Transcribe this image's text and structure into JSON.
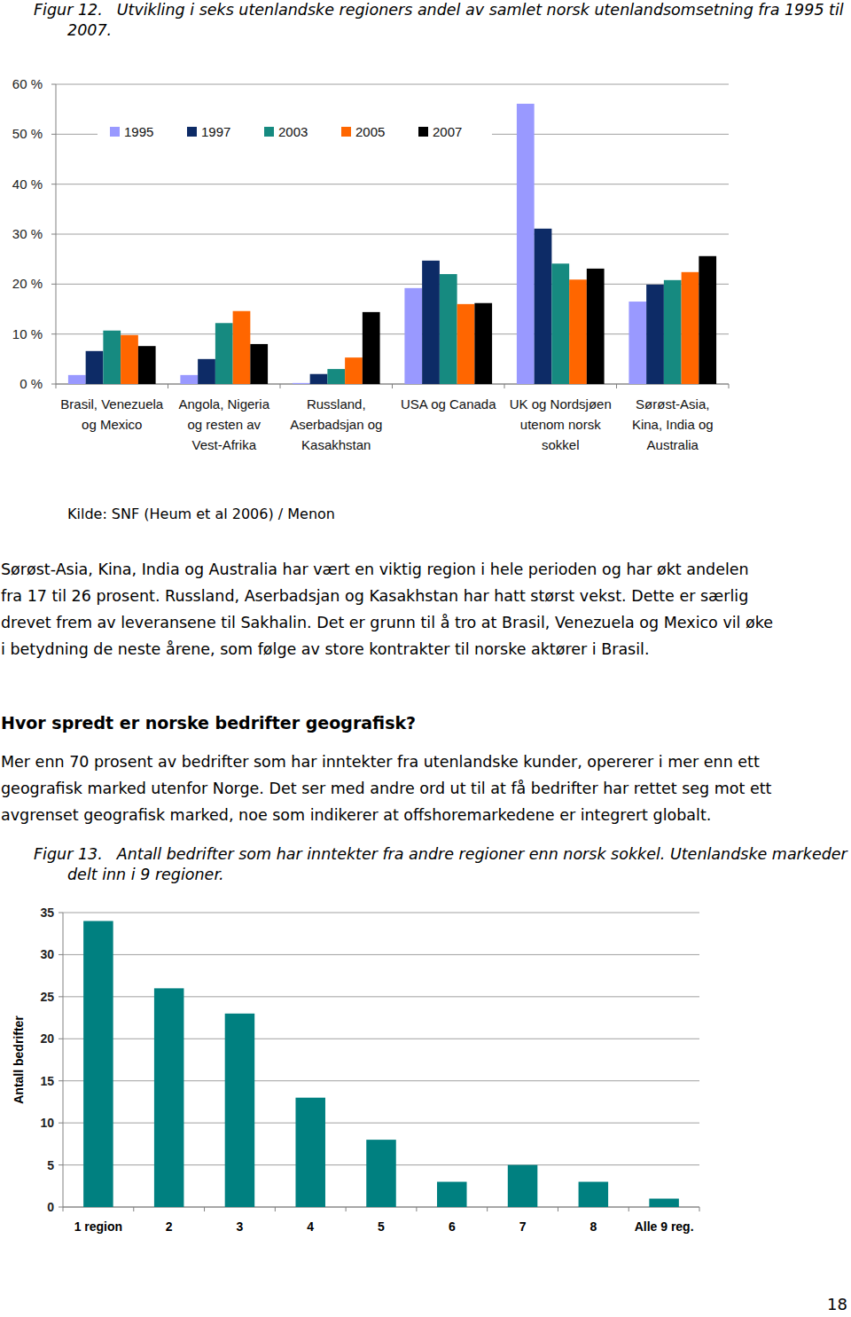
{
  "chart_data": [
    {
      "type": "bar",
      "title": "Figur 12.",
      "subtitle": "Utvikling i seks utenlandske regioners andel av samlet norsk utenlandsomsetning fra 1995 til 2007.",
      "categories": [
        "Brasil, Venezuela og Mexico",
        "Angola, Nigeria og resten av Vest-Afrika",
        "Russland, Aserbadsjan og Kasakhstan",
        "USA og Canada",
        "UK og Nordsjøen utenom norsk sokkel",
        "Sørøst-Asia, Kina, India og Australia"
      ],
      "series": [
        {
          "name": "1995",
          "color": "#9999ff",
          "values": [
            1.8,
            1.8,
            0.2,
            19.2,
            56.1,
            16.5
          ]
        },
        {
          "name": "1997",
          "color": "#0d2b66",
          "values": [
            6.6,
            5.0,
            2.0,
            24.7,
            31.1,
            19.9
          ]
        },
        {
          "name": "2003",
          "color": "#168a80",
          "values": [
            10.7,
            12.2,
            3.0,
            22.0,
            24.1,
            20.8
          ]
        },
        {
          "name": "2005",
          "color": "#ff6600",
          "values": [
            9.8,
            14.6,
            5.3,
            16.0,
            20.9,
            22.4
          ]
        },
        {
          "name": "2007",
          "color": "#000000",
          "values": [
            7.6,
            8.0,
            14.4,
            16.2,
            23.1,
            25.6
          ]
        }
      ],
      "ylim": [
        0,
        60
      ],
      "yticks": [
        {
          "value": 0,
          "label": "0 %"
        },
        {
          "value": 10,
          "label": "10 %"
        },
        {
          "value": 20,
          "label": "20 %"
        },
        {
          "value": 30,
          "label": "30 %"
        },
        {
          "value": 40,
          "label": "40 %"
        },
        {
          "value": 50,
          "label": "50 %"
        },
        {
          "value": 60,
          "label": "60 %"
        }
      ],
      "grid": true,
      "legend": "top"
    },
    {
      "type": "bar",
      "title": "Figur 13.",
      "subtitle": "Antall bedrifter som har inntekter fra andre regioner enn norsk sokkel. Utenlandske markeder delt inn i 9 regioner.",
      "y_label": "Antall bedrifter",
      "categories": [
        "1 region",
        "2",
        "3",
        "4",
        "5",
        "6",
        "7",
        "8",
        "Alle 9 reg."
      ],
      "values": [
        34,
        26,
        23,
        13,
        8,
        3,
        5,
        3,
        1
      ],
      "color": "#008080",
      "ylim": [
        0,
        35
      ],
      "yticks": [
        0,
        5,
        10,
        15,
        20,
        25,
        30,
        35
      ],
      "grid": true
    }
  ],
  "document": {
    "source_note": "Kilde: SNF (Heum et al 2006) / Menon",
    "paragraph_1": [
      "Sørøst-Asia, Kina, India og Australia har vært en viktig region i hele perioden og har økt andelen",
      "fra 17 til 26 prosent. Russland, Aserbadsjan og Kasakhstan har hatt størst vekst. Dette er særlig",
      "drevet frem av leveransene til Sakhalin. Det er grunn til å tro at Brasil, Venezuela og Mexico vil øke",
      "i betydning de neste årene, som følge av store kontrakter til norske aktører i Brasil."
    ],
    "heading": "Hvor spredt er norske bedrifter geografisk?",
    "paragraph_2": [
      "Mer enn 70 prosent av bedrifter som har inntekter fra utenlandske kunder, opererer i mer enn ett",
      "geografisk marked utenfor Norge. Det ser med andre ord ut til at få bedrifter har rettet seg mot ett",
      "avgrenset geografisk marked, noe som indikerer at offshoremarkedene er integrert globalt."
    ],
    "page_number": "18"
  }
}
